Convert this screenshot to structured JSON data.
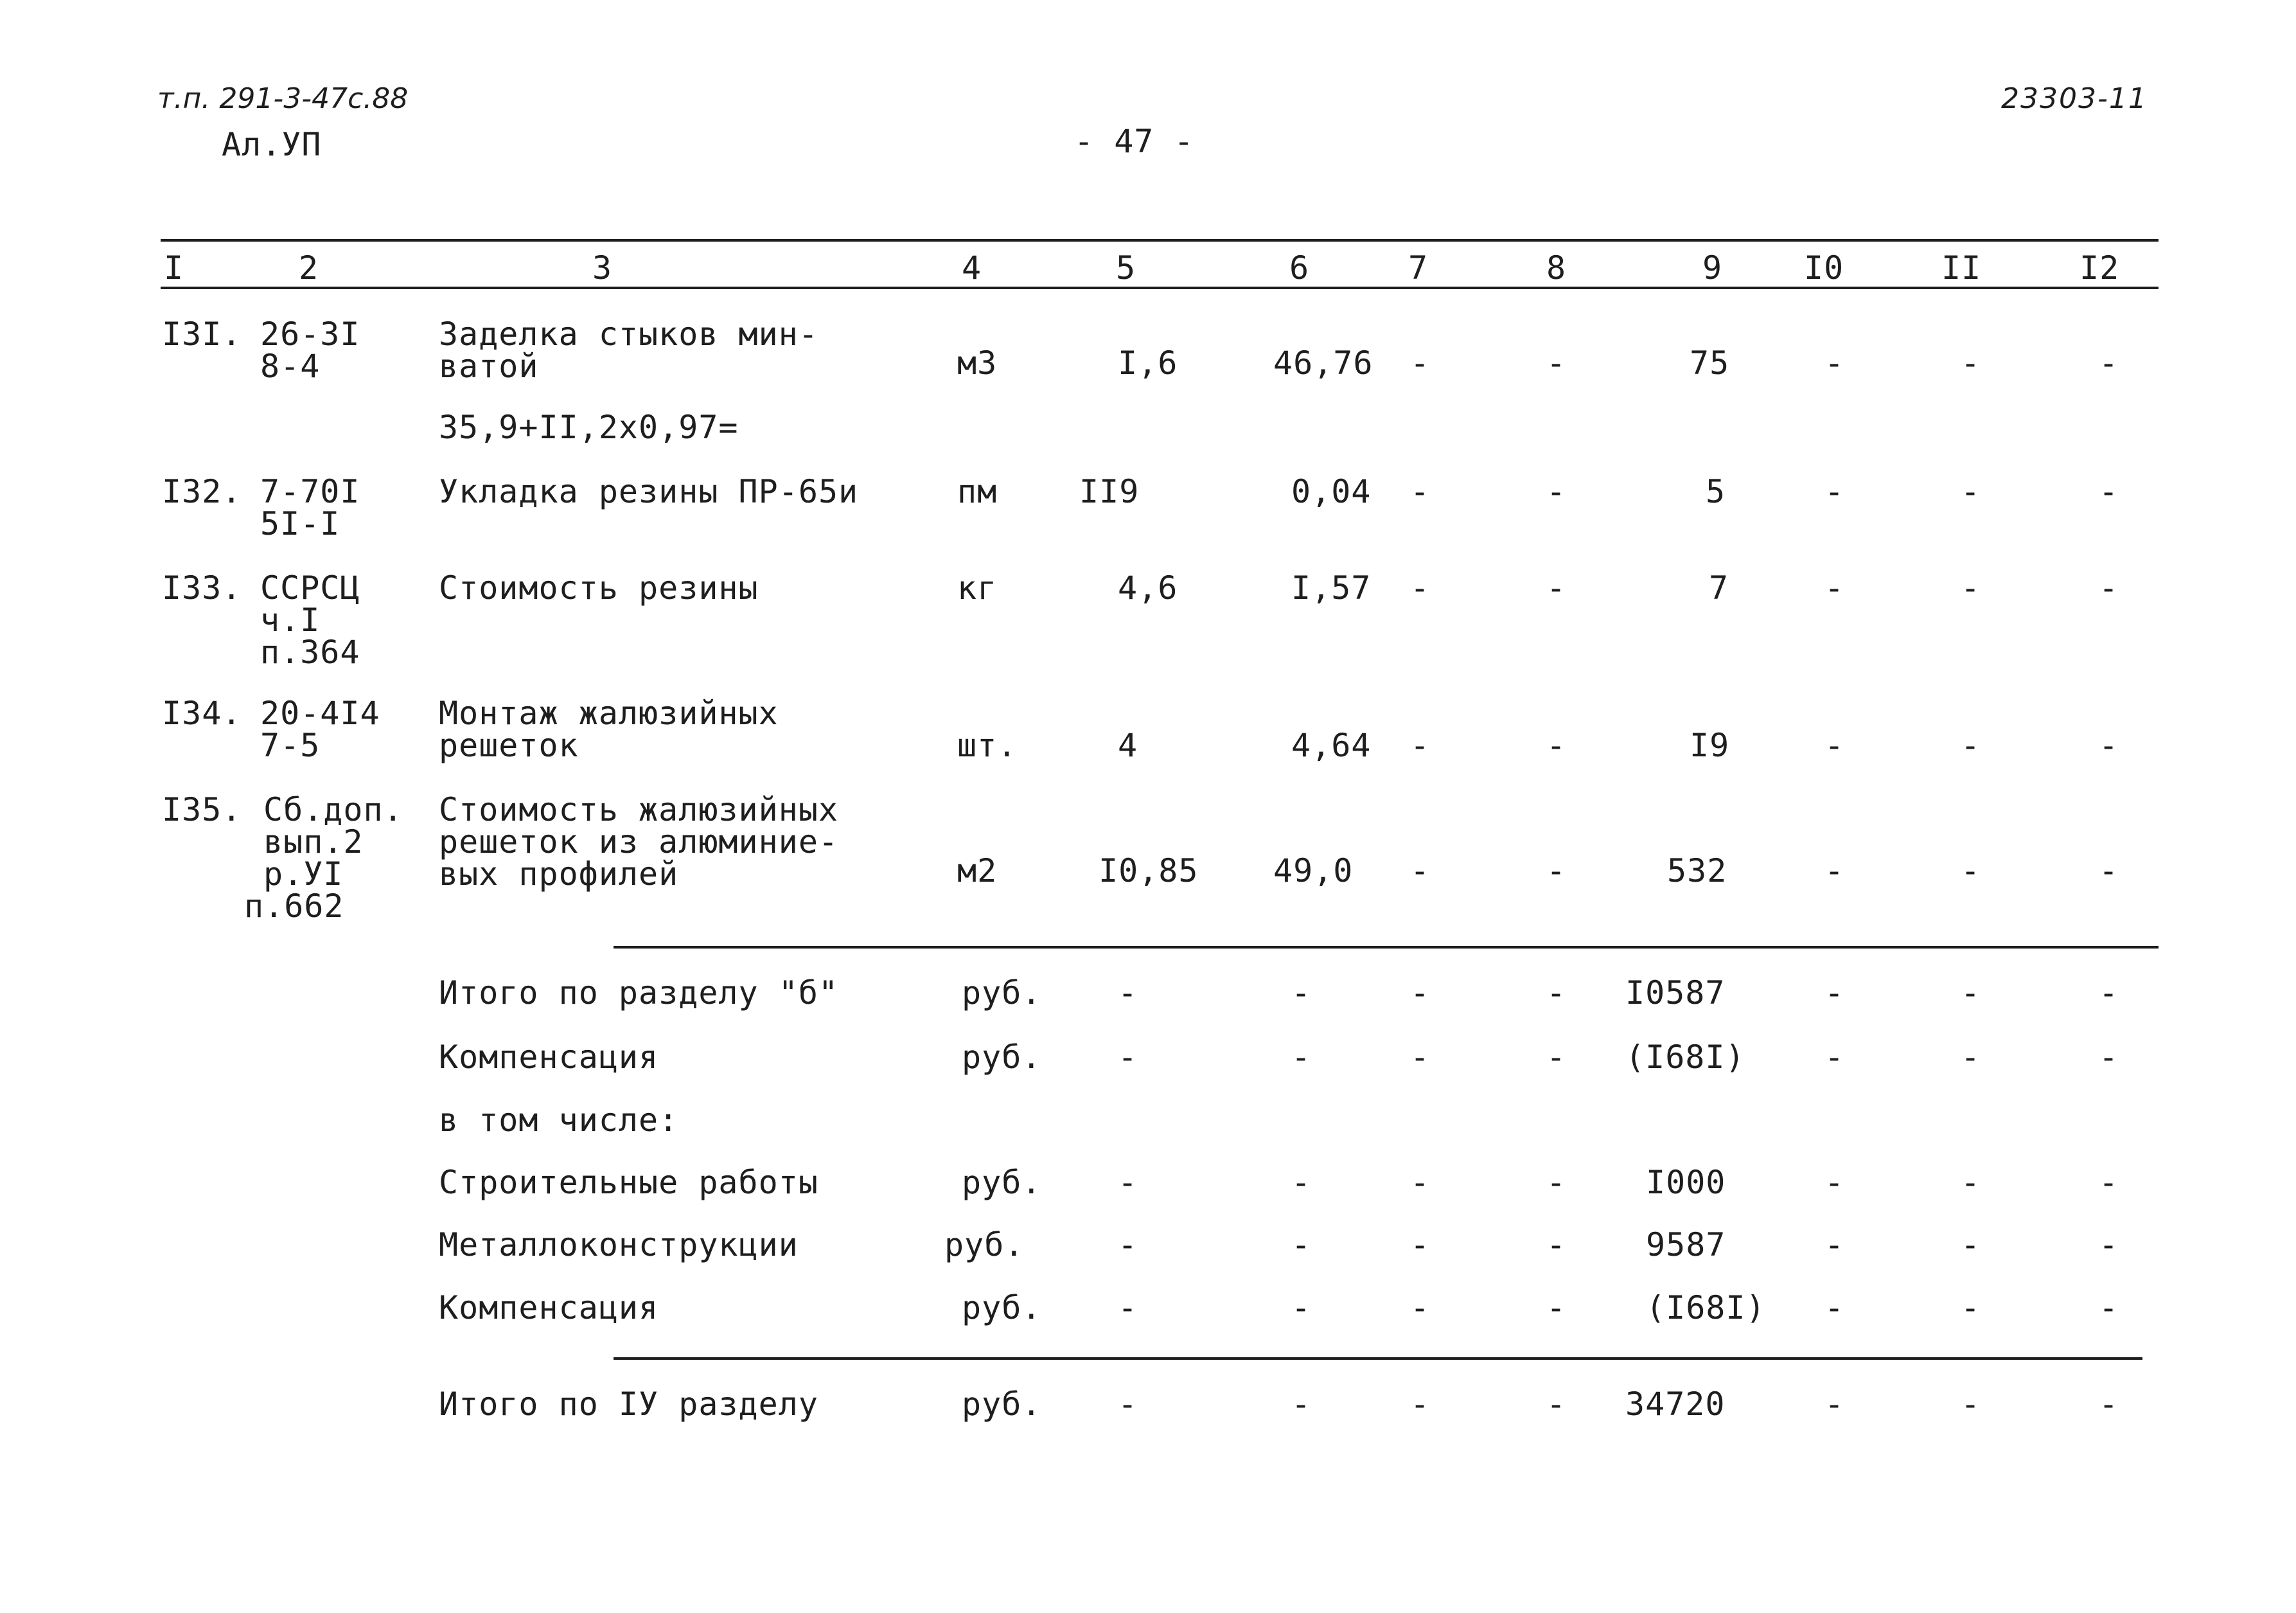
{
  "header": {
    "project": "т.п. 291-3-47с.88",
    "album": "Ал.УП",
    "page_number": "- 47 -",
    "doc_code": "23303-11"
  },
  "columns": [
    "I",
    "2",
    "3",
    "4",
    "5",
    "6",
    "7",
    "8",
    "9",
    "I0",
    "II",
    "I2"
  ],
  "rows": [
    {
      "num": "I3I.",
      "code": [
        "26-3I",
        "8-4"
      ],
      "desc": [
        "Заделка стыков мин-",
        "ватой"
      ],
      "unit": "м3",
      "c5": "I,6",
      "c6": "46,76",
      "c7": "-",
      "c8": "-",
      "c9": "75",
      "c10": "-",
      "c11": "-",
      "c12": "-"
    },
    {
      "formula": "35,9+II,2х0,97="
    },
    {
      "num": "I32.",
      "code": [
        "7-70I",
        "5I-I"
      ],
      "desc": [
        "Укладка резины ПР-65и"
      ],
      "unit": "пм",
      "c5": "II9",
      "c6": "0,04",
      "c7": "-",
      "c8": "-",
      "c9": "5",
      "c10": "-",
      "c11": "-",
      "c12": "-"
    },
    {
      "num": "I33.",
      "code": [
        "ССРСЦ",
        "ч.I",
        "п.364"
      ],
      "desc": [
        "Стоимость резины"
      ],
      "unit": "кг",
      "c5": "4,6",
      "c6": "I,57",
      "c7": "-",
      "c8": "-",
      "c9": "7",
      "c10": "-",
      "c11": "-",
      "c12": "-"
    },
    {
      "num": "I34.",
      "code": [
        "20-4I4",
        "7-5"
      ],
      "desc": [
        "Монтаж жалюзийных",
        "решеток"
      ],
      "unit": "шт.",
      "c5": "4",
      "c6": "4,64",
      "c7": "-",
      "c8": "-",
      "c9": "I9",
      "c10": "-",
      "c11": "-",
      "c12": "-"
    },
    {
      "num": "I35.",
      "code": [
        "Сб.доп.",
        "вып.2",
        "р.УI",
        "п.662"
      ],
      "desc": [
        "Стоимость жалюзийных",
        "решеток из алюминие-",
        "вых профилей"
      ],
      "unit": "м2",
      "c5": "I0,85",
      "c6": "49,0",
      "c7": "-",
      "c8": "-",
      "c9": "532",
      "c10": "-",
      "c11": "-",
      "c12": "-"
    }
  ],
  "summary": [
    {
      "label": "Итого по разделу \"б\"",
      "unit": "руб.",
      "c5": "-",
      "c6": "-",
      "c7": "-",
      "c8": "-",
      "c9": "I0587",
      "c10": "-",
      "c11": "-",
      "c12": "-"
    },
    {
      "label": "Компенсация",
      "unit": "руб.",
      "c5": "-",
      "c6": "-",
      "c7": "-",
      "c8": "-",
      "c9": "(I68I)",
      "c10": "-",
      "c11": "-",
      "c12": "-"
    },
    {
      "label": "в том числе:"
    },
    {
      "label": "Строительные работы",
      "unit": "руб.",
      "c5": "-",
      "c6": "-",
      "c7": "-",
      "c8": "-",
      "c9": "I000",
      "c10": "-",
      "c11": "-",
      "c12": "-"
    },
    {
      "label": "Металлоконструкции",
      "unit": "руб.",
      "c5": "-",
      "c6": "-",
      "c7": "-",
      "c8": "-",
      "c9": "9587",
      "c10": "-",
      "c11": "-",
      "c12": "-"
    },
    {
      "label": "Компенсация",
      "unit": "руб.",
      "c5": "-",
      "c6": "-",
      "c7": "-",
      "c8": "-",
      "c9": "(I68I)",
      "c10": "-",
      "c11": "-",
      "c12": "-"
    }
  ],
  "total": {
    "label": "Итого по IУ разделу",
    "unit": "руб.",
    "c5": "-",
    "c6": "-",
    "c7": "-",
    "c8": "-",
    "c9": "34720",
    "c10": "-",
    "c11": "-",
    "c12": "-"
  }
}
